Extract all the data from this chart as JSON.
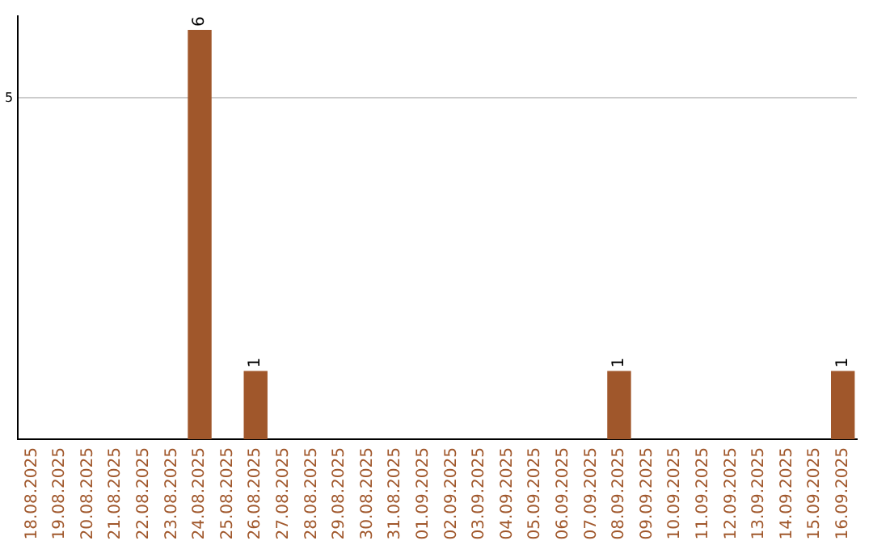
{
  "chart_data": {
    "type": "bar",
    "categories": [
      "18.08.2025",
      "19.08.2025",
      "20.08.2025",
      "21.08.2025",
      "22.08.2025",
      "23.08.2025",
      "24.08.2025",
      "25.08.2025",
      "26.08.2025",
      "27.08.2025",
      "28.08.2025",
      "29.08.2025",
      "30.08.2025",
      "31.08.2025",
      "01.09.2025",
      "02.09.2025",
      "03.09.2025",
      "04.09.2025",
      "05.09.2025",
      "06.09.2025",
      "07.09.2025",
      "08.09.2025",
      "09.09.2025",
      "10.09.2025",
      "11.09.2025",
      "12.09.2025",
      "13.09.2025",
      "14.09.2025",
      "15.09.2025",
      "16.09.2025"
    ],
    "values": [
      null,
      null,
      null,
      null,
      null,
      null,
      6,
      null,
      1,
      null,
      null,
      null,
      null,
      null,
      null,
      null,
      null,
      null,
      null,
      null,
      null,
      1,
      null,
      null,
      null,
      null,
      null,
      null,
      null,
      1
    ],
    "color": "#a0572b",
    "ylim": [
      0,
      6.2
    ],
    "yticks": [
      5
    ],
    "grid": "y",
    "legend": false,
    "data_labels": true
  }
}
